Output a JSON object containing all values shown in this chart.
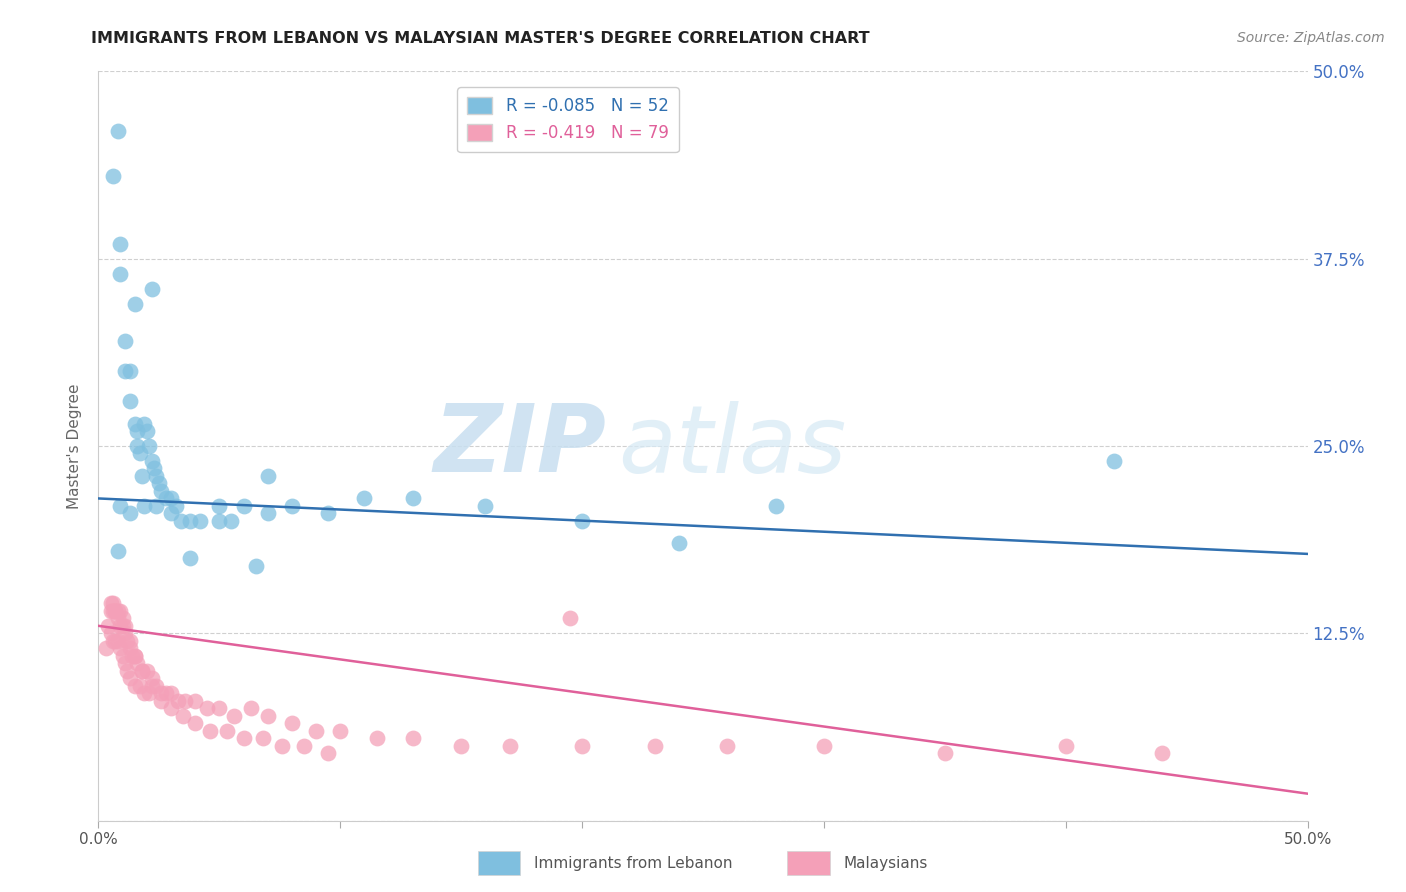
{
  "title": "IMMIGRANTS FROM LEBANON VS MALAYSIAN MASTER'S DEGREE CORRELATION CHART",
  "source": "Source: ZipAtlas.com",
  "ylabel": "Master's Degree",
  "xlim": [
    0.0,
    0.5
  ],
  "ylim": [
    0.0,
    0.5
  ],
  "yticks": [
    0.0,
    0.125,
    0.25,
    0.375,
    0.5
  ],
  "xticks": [
    0.0,
    0.1,
    0.2,
    0.3,
    0.4,
    0.5
  ],
  "legend_entry1_r": "-0.085",
  "legend_entry1_n": "52",
  "legend_entry2_r": "-0.419",
  "legend_entry2_n": "79",
  "color_blue": "#7fbfdf",
  "color_pink": "#f4a0b8",
  "trendline_blue": "#3070b0",
  "trendline_pink": "#e0609a",
  "watermark_zip": "ZIP",
  "watermark_atlas": "atlas",
  "blue_x": [
    0.006,
    0.008,
    0.009,
    0.009,
    0.011,
    0.011,
    0.013,
    0.013,
    0.015,
    0.016,
    0.016,
    0.017,
    0.018,
    0.019,
    0.02,
    0.021,
    0.022,
    0.023,
    0.024,
    0.025,
    0.026,
    0.028,
    0.03,
    0.032,
    0.034,
    0.038,
    0.042,
    0.05,
    0.06,
    0.07,
    0.08,
    0.095,
    0.11,
    0.13,
    0.16,
    0.2,
    0.24,
    0.28,
    0.015,
    0.022,
    0.05,
    0.07,
    0.42,
    0.009,
    0.013,
    0.019,
    0.024,
    0.03,
    0.038,
    0.055,
    0.065,
    0.008
  ],
  "blue_y": [
    0.43,
    0.46,
    0.385,
    0.365,
    0.32,
    0.3,
    0.3,
    0.28,
    0.265,
    0.26,
    0.25,
    0.245,
    0.23,
    0.265,
    0.26,
    0.25,
    0.24,
    0.235,
    0.23,
    0.225,
    0.22,
    0.215,
    0.215,
    0.21,
    0.2,
    0.2,
    0.2,
    0.2,
    0.21,
    0.205,
    0.21,
    0.205,
    0.215,
    0.215,
    0.21,
    0.2,
    0.185,
    0.21,
    0.345,
    0.355,
    0.21,
    0.23,
    0.24,
    0.21,
    0.205,
    0.21,
    0.21,
    0.205,
    0.175,
    0.2,
    0.17,
    0.18
  ],
  "pink_x": [
    0.003,
    0.004,
    0.005,
    0.005,
    0.006,
    0.006,
    0.007,
    0.007,
    0.008,
    0.008,
    0.009,
    0.009,
    0.01,
    0.01,
    0.011,
    0.011,
    0.012,
    0.012,
    0.013,
    0.013,
    0.014,
    0.015,
    0.015,
    0.016,
    0.017,
    0.018,
    0.019,
    0.02,
    0.021,
    0.022,
    0.024,
    0.026,
    0.028,
    0.03,
    0.033,
    0.036,
    0.04,
    0.045,
    0.05,
    0.056,
    0.063,
    0.07,
    0.08,
    0.09,
    0.1,
    0.115,
    0.13,
    0.15,
    0.17,
    0.2,
    0.23,
    0.26,
    0.3,
    0.35,
    0.4,
    0.44,
    0.005,
    0.006,
    0.007,
    0.008,
    0.009,
    0.01,
    0.011,
    0.013,
    0.015,
    0.018,
    0.022,
    0.026,
    0.03,
    0.035,
    0.04,
    0.046,
    0.053,
    0.06,
    0.068,
    0.076,
    0.085,
    0.095,
    0.195
  ],
  "pink_y": [
    0.115,
    0.13,
    0.145,
    0.125,
    0.145,
    0.12,
    0.14,
    0.12,
    0.135,
    0.12,
    0.13,
    0.115,
    0.13,
    0.11,
    0.125,
    0.105,
    0.12,
    0.1,
    0.115,
    0.095,
    0.11,
    0.11,
    0.09,
    0.105,
    0.09,
    0.1,
    0.085,
    0.1,
    0.085,
    0.095,
    0.09,
    0.085,
    0.085,
    0.085,
    0.08,
    0.08,
    0.08,
    0.075,
    0.075,
    0.07,
    0.075,
    0.07,
    0.065,
    0.06,
    0.06,
    0.055,
    0.055,
    0.05,
    0.05,
    0.05,
    0.05,
    0.05,
    0.05,
    0.045,
    0.05,
    0.045,
    0.14,
    0.14,
    0.14,
    0.14,
    0.14,
    0.135,
    0.13,
    0.12,
    0.11,
    0.1,
    0.09,
    0.08,
    0.075,
    0.07,
    0.065,
    0.06,
    0.06,
    0.055,
    0.055,
    0.05,
    0.05,
    0.045,
    0.135
  ],
  "blue_trend_y_start": 0.215,
  "blue_trend_y_end": 0.178,
  "pink_trend_y_start": 0.13,
  "pink_trend_y_end": 0.018,
  "background_color": "#ffffff",
  "grid_color": "#d0d0d0",
  "title_color": "#222222",
  "right_label_color": "#4472c4",
  "tick_label_color": "#555555"
}
